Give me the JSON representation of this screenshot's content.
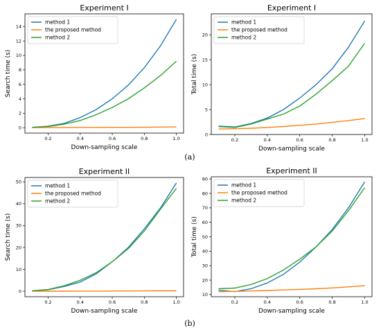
{
  "colors": {
    "method1": "#1f77b4",
    "proposed": "#ff7f0e",
    "method2": "#2ca02c"
  },
  "panel_labels": [
    "(a)",
    "(b)"
  ],
  "chart_data": [
    {
      "type": "line",
      "title": "Experiment I",
      "xlabel": "Down-sampling scale",
      "ylabel": "Search time (s)",
      "xlim": [
        0.055,
        1.045
      ],
      "ylim": [
        -0.75,
        15.75
      ],
      "xticks": [
        0.2,
        0.4,
        0.6,
        0.8,
        1.0
      ],
      "xtick_labels": [
        "0.2",
        "0.4",
        "0.6",
        "0.8",
        "1.0"
      ],
      "yticks": [
        0,
        2,
        4,
        6,
        8,
        10,
        12,
        14
      ],
      "ytick_labels": [
        "0",
        "2",
        "4",
        "6",
        "8",
        "10",
        "12",
        "14"
      ],
      "legend": "top-left",
      "x": [
        0.1,
        0.2,
        0.3,
        0.4,
        0.5,
        0.6,
        0.7,
        0.8,
        0.9,
        1.0
      ],
      "series": [
        {
          "name": "method 1",
          "color_key": "method1",
          "values": [
            0.05,
            0.2,
            0.6,
            1.4,
            2.5,
            4.0,
            5.9,
            8.3,
            11.3,
            15.0
          ]
        },
        {
          "name": "the proposed method",
          "color_key": "proposed",
          "values": [
            0.02,
            0.03,
            0.03,
            0.04,
            0.04,
            0.05,
            0.05,
            0.06,
            0.08,
            0.1
          ]
        },
        {
          "name": "method 2",
          "color_key": "method2",
          "values": [
            0.05,
            0.15,
            0.5,
            1.0,
            1.8,
            2.8,
            4.0,
            5.5,
            7.2,
            9.2
          ]
        }
      ]
    },
    {
      "type": "line",
      "title": "Experiment I",
      "xlabel": "Down-sampling scale",
      "ylabel": "Total time (s)",
      "xlim": [
        0.055,
        1.045
      ],
      "ylim": [
        0,
        24.2
      ],
      "xticks": [
        0.2,
        0.4,
        0.6,
        0.8,
        1.0
      ],
      "xtick_labels": [
        "0.2",
        "0.4",
        "0.6",
        "0.8",
        "1.0"
      ],
      "yticks": [
        0,
        5,
        10,
        15,
        20
      ],
      "ytick_labels": [
        "0",
        "5",
        "10",
        "15",
        "20"
      ],
      "legend": "top-left",
      "x": [
        0.1,
        0.2,
        0.3,
        0.4,
        0.5,
        0.6,
        0.7,
        0.8,
        0.9,
        1.0
      ],
      "series": [
        {
          "name": "method 1",
          "color_key": "method1",
          "values": [
            1.7,
            1.5,
            2.2,
            3.3,
            5.0,
            7.3,
            10.0,
            13.2,
            17.5,
            22.8
          ]
        },
        {
          "name": "the proposed method",
          "color_key": "proposed",
          "values": [
            1.1,
            1.15,
            1.25,
            1.4,
            1.6,
            1.85,
            2.1,
            2.45,
            2.8,
            3.2
          ]
        },
        {
          "name": "method 2",
          "color_key": "method2",
          "values": [
            1.6,
            1.4,
            2.1,
            3.1,
            4.1,
            5.7,
            8.1,
            10.8,
            13.7,
            18.3
          ]
        }
      ]
    },
    {
      "type": "line",
      "title": "Experiment II",
      "xlabel": "Down-sampling scale",
      "ylabel": "Search time (s)",
      "xlim": [
        0.055,
        1.045
      ],
      "ylim": [
        -2.5,
        52
      ],
      "xticks": [
        0.2,
        0.4,
        0.6,
        0.8,
        1.0
      ],
      "xtick_labels": [
        "0.2",
        "0.4",
        "0.6",
        "0.8",
        "1.0"
      ],
      "yticks": [
        0,
        10,
        20,
        30,
        40,
        50
      ],
      "ytick_labels": [
        "0",
        "10",
        "20",
        "30",
        "40",
        "50"
      ],
      "legend": "top-left",
      "x": [
        0.1,
        0.2,
        0.3,
        0.4,
        0.5,
        0.6,
        0.7,
        0.8,
        0.9,
        1.0
      ],
      "series": [
        {
          "name": "method 1",
          "color_key": "method1",
          "values": [
            0.1,
            0.7,
            2.2,
            4.2,
            8.0,
            13.5,
            20.0,
            28.5,
            38.0,
            49.5
          ]
        },
        {
          "name": "the proposed method",
          "color_key": "proposed",
          "values": [
            0.0,
            0.03,
            0.05,
            0.07,
            0.08,
            0.1,
            0.12,
            0.15,
            0.18,
            0.2
          ]
        },
        {
          "name": "method 2",
          "color_key": "method2",
          "values": [
            0.2,
            0.8,
            2.5,
            5.0,
            8.5,
            13.5,
            19.5,
            27.5,
            37.5,
            47.0
          ]
        }
      ]
    },
    {
      "type": "line",
      "title": "Experiment II",
      "xlabel": "Down-sampling scale",
      "ylabel": "Total time (s)",
      "xlim": [
        0.055,
        1.045
      ],
      "ylim": [
        8.5,
        91.5
      ],
      "xticks": [
        0.2,
        0.4,
        0.6,
        0.8,
        1.0
      ],
      "xtick_labels": [
        "0.2",
        "0.4",
        "0.6",
        "0.8",
        "1.0"
      ],
      "yticks": [
        10,
        20,
        30,
        40,
        50,
        60,
        70,
        80,
        90
      ],
      "ytick_labels": [
        "10",
        "20",
        "30",
        "40",
        "50",
        "60",
        "70",
        "80",
        "90"
      ],
      "legend": "top-left",
      "x": [
        0.1,
        0.2,
        0.3,
        0.4,
        0.5,
        0.6,
        0.7,
        0.8,
        0.9,
        1.0
      ],
      "series": [
        {
          "name": "method 1",
          "color_key": "method1",
          "values": [
            13.0,
            12.0,
            14.0,
            18.0,
            24.0,
            32.5,
            43.0,
            55.0,
            70.0,
            88.0
          ]
        },
        {
          "name": "the proposed method",
          "color_key": "proposed",
          "values": [
            12.0,
            12.2,
            12.5,
            12.8,
            13.2,
            13.6,
            14.0,
            14.6,
            15.3,
            16.2
          ]
        },
        {
          "name": "method 2",
          "color_key": "method2",
          "values": [
            14.0,
            14.5,
            17.0,
            21.0,
            27.0,
            34.5,
            43.0,
            54.0,
            68.0,
            84.0
          ]
        }
      ]
    }
  ]
}
